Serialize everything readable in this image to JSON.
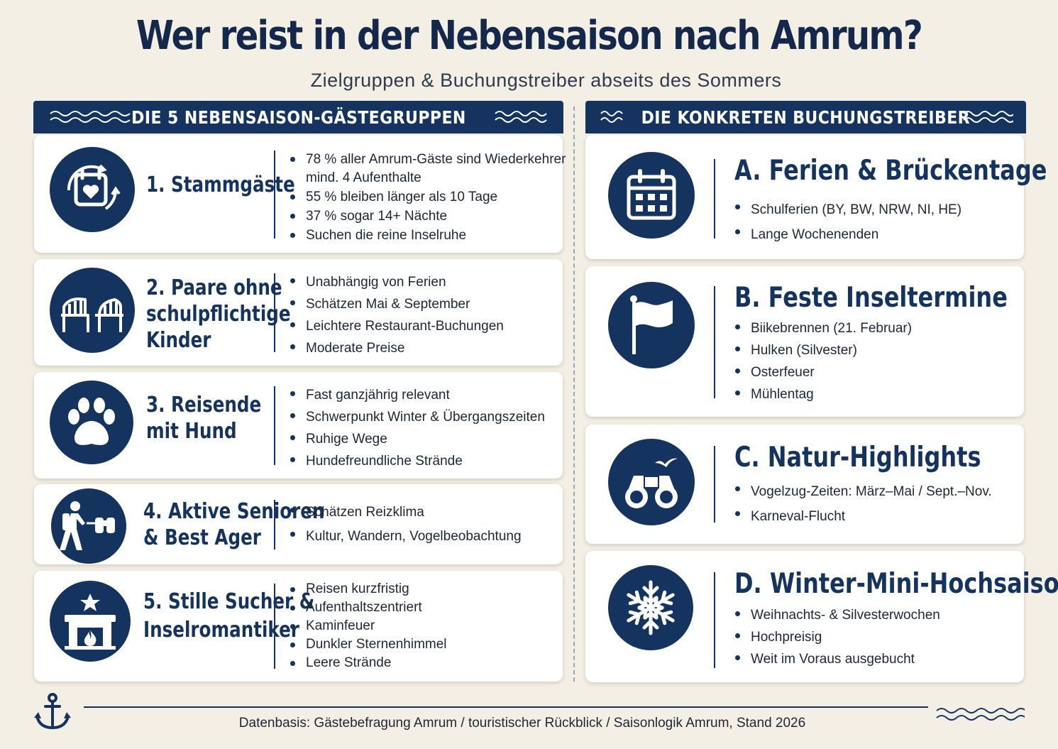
{
  "title": "Wer reist in der Nebensaison nach Amrum?",
  "subtitle": "Zielgruppen & Buchungstreiber abseits des Sommers",
  "left_header": "DIE 5 NEBENSAISON-GÄSTEGRUPPEN",
  "right_header": "DIE KONKRETEN BUCHUNGSTREIBER",
  "groups": [
    {
      "icon": "calendar-heart-icon",
      "name_lines": [
        "1. Stammgäste"
      ],
      "bullets": [
        "78 % aller Amrum-Gäste sind Wiederkehrer",
        "mind. 4 Aufenthalte",
        "55 % bleiben länger als 10 Tage",
        "37 % sogar 14+ Nächte",
        "Suchen die reine Inselruhe"
      ]
    },
    {
      "icon": "beach-chairs-icon",
      "name_lines": [
        "2. Paare ohne",
        "schulpflichtige",
        "Kinder"
      ],
      "bullets": [
        "Unabhängig von Ferien",
        "Schätzen Mai & September",
        "Leichtere Restaurant-Buchungen",
        "Moderate Preise"
      ]
    },
    {
      "icon": "paw-icon",
      "name_lines": [
        "3. Reisende",
        "mit Hund"
      ],
      "bullets": [
        "Fast ganzjährig relevant",
        "Schwerpunkt Winter & Übergangszeiten",
        "Ruhige Wege",
        "Hundefreundliche Strände"
      ]
    },
    {
      "icon": "hiker-binoculars-icon",
      "name_lines": [
        "4. Aktive Senioren",
        "& Best Ager"
      ],
      "bullets": [
        "Schätzen Reizklima",
        "Kultur, Wandern, Vogelbeobachtung"
      ]
    },
    {
      "icon": "fireplace-star-icon",
      "name_lines": [
        "5. Stille Sucher &",
        "Inselromantiker"
      ],
      "bullets": [
        "Reisen kurzfristig",
        "Aufenthaltszentriert",
        "Kaminfeuer",
        "Dunkler Sternenhimmel",
        "Leere Strände"
      ]
    }
  ],
  "drivers": [
    {
      "icon": "calendar-icon",
      "name": "A. Ferien & Brückentage",
      "bullets": [
        "Schulferien (BY, BW, NRW, NI, HE)",
        "Lange Wochenenden"
      ]
    },
    {
      "icon": "flag-icon",
      "name": "B. Feste Inseltermine",
      "bullets": [
        "Biikebrennen (21. Februar)",
        "Hulken (Silvester)",
        "Osterfeuer",
        "Mühlentag"
      ]
    },
    {
      "icon": "binoculars-bird-icon",
      "name": "C. Natur-Highlights",
      "bullets": [
        "Vogelzug-Zeiten: März–Mai / Sept.–Nov.",
        "Karneval-Flucht"
      ]
    },
    {
      "icon": "snowflake-icon",
      "name": "D. Winter-Mini-Hochsaison",
      "bullets": [
        "Weihnachts- & Silvesterwochen",
        "Hochpreisig",
        "Weit im Voraus ausgebucht"
      ]
    }
  ],
  "footer": "Datenbasis: Gästebefragung Amrum / touristischer Rückblick / Saisonlogik Amrum, Stand 2026",
  "colors": {
    "navy": "#14345f",
    "background": "#f4efe4",
    "card": "#ffffff"
  }
}
